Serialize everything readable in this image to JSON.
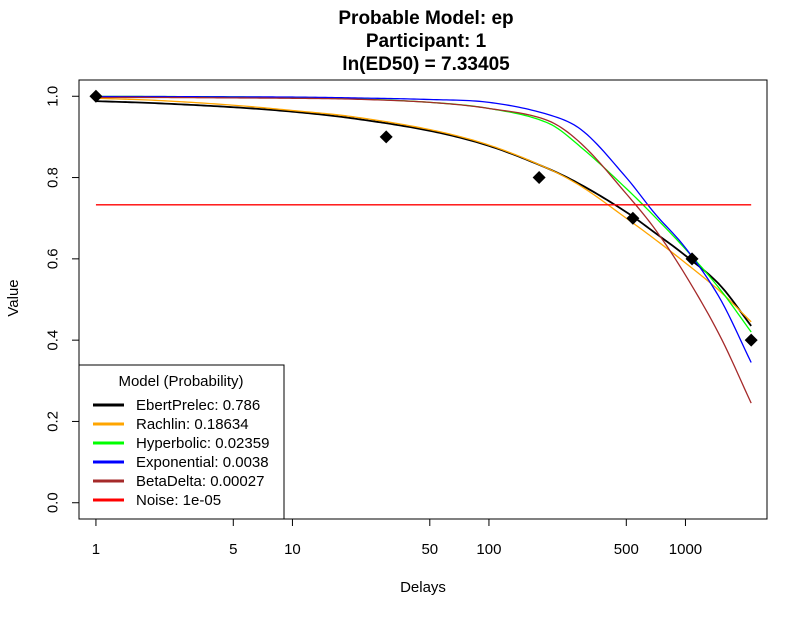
{
  "chart_data": {
    "type": "line",
    "title_lines": [
      "Probable Model: ep",
      "Participant: 1",
      "ln(ED50) = 7.33405"
    ],
    "xlabel": "Delays",
    "ylabel": "Value",
    "x_scale": "log",
    "xlim": [
      0.82,
      2600
    ],
    "ylim": [
      -0.04,
      1.04
    ],
    "x_ticks": [
      1,
      5,
      10,
      50,
      100,
      500,
      1000
    ],
    "x_tick_labels": [
      "1",
      "5",
      "10",
      "50",
      "100",
      "500",
      "1000"
    ],
    "y_ticks": [
      0,
      0.2,
      0.4,
      0.6,
      0.8,
      1
    ],
    "y_tick_labels": [
      "0.0",
      "0.2",
      "0.4",
      "0.6",
      "0.8",
      "1.0"
    ],
    "observed_points": [
      {
        "x": 1,
        "y": 1.0
      },
      {
        "x": 30,
        "y": 0.9
      },
      {
        "x": 180,
        "y": 0.8
      },
      {
        "x": 540,
        "y": 0.7
      },
      {
        "x": 1080,
        "y": 0.6
      },
      {
        "x": 2160,
        "y": 0.4
      }
    ],
    "series": [
      {
        "name": "EbertPrelec",
        "color": "#000000",
        "x": [
          1,
          2,
          5,
          10,
          20,
          50,
          100,
          200,
          300,
          500,
          700,
          1000,
          1500,
          2160
        ],
        "y": [
          0.988,
          0.983,
          0.973,
          0.962,
          0.946,
          0.915,
          0.878,
          0.822,
          0.78,
          0.715,
          0.664,
          0.608,
          0.535,
          0.435
        ]
      },
      {
        "name": "Rachlin",
        "color": "#FFA500",
        "x": [
          1,
          2,
          5,
          10,
          20,
          50,
          100,
          200,
          300,
          500,
          700,
          1000,
          1500,
          2160
        ],
        "y": [
          0.995,
          0.99,
          0.978,
          0.965,
          0.95,
          0.918,
          0.88,
          0.822,
          0.776,
          0.7,
          0.648,
          0.59,
          0.52,
          0.445
        ]
      },
      {
        "name": "Hyperbolic",
        "color": "#00FF00",
        "x": [
          1,
          2,
          5,
          10,
          20,
          50,
          100,
          200,
          300,
          500,
          700,
          1000,
          1500,
          2160
        ],
        "y": [
          0.9997,
          0.9994,
          0.9985,
          0.997,
          0.994,
          0.985,
          0.97,
          0.934,
          0.871,
          0.773,
          0.703,
          0.624,
          0.525,
          0.42
        ]
      },
      {
        "name": "Exponential",
        "color": "#0000FF",
        "x": [
          1,
          2,
          5,
          10,
          20,
          50,
          100,
          200,
          300,
          500,
          700,
          1000,
          1500,
          2160
        ],
        "y": [
          0.9995,
          0.9993,
          0.9985,
          0.998,
          0.996,
          0.992,
          0.985,
          0.955,
          0.915,
          0.8,
          0.711,
          0.627,
          0.502,
          0.345
        ]
      },
      {
        "name": "BetaDelta",
        "color": "#A52A2A",
        "x": [
          1,
          2,
          5,
          10,
          20,
          50,
          100,
          200,
          300,
          500,
          700,
          1000,
          1500,
          2160
        ],
        "y": [
          0.997,
          0.997,
          0.996,
          0.995,
          0.993,
          0.985,
          0.97,
          0.94,
          0.88,
          0.76,
          0.673,
          0.56,
          0.41,
          0.245
        ]
      },
      {
        "name": "Noise",
        "color": "#FF0000",
        "x": [
          1,
          2160
        ],
        "y": [
          0.733,
          0.733
        ]
      }
    ],
    "legend": {
      "title": "Model (Probability)",
      "position": "bottom-left",
      "entries": [
        {
          "label": "EbertPrelec: 0.786",
          "color": "#000000"
        },
        {
          "label": "Rachlin: 0.18634",
          "color": "#FFA500"
        },
        {
          "label": "Hyperbolic: 0.02359",
          "color": "#00FF00"
        },
        {
          "label": "Exponential: 0.0038",
          "color": "#0000FF"
        },
        {
          "label": "BetaDelta: 0.00027",
          "color": "#A52A2A"
        },
        {
          "label": "Noise: 1e-05",
          "color": "#FF0000"
        }
      ]
    }
  }
}
